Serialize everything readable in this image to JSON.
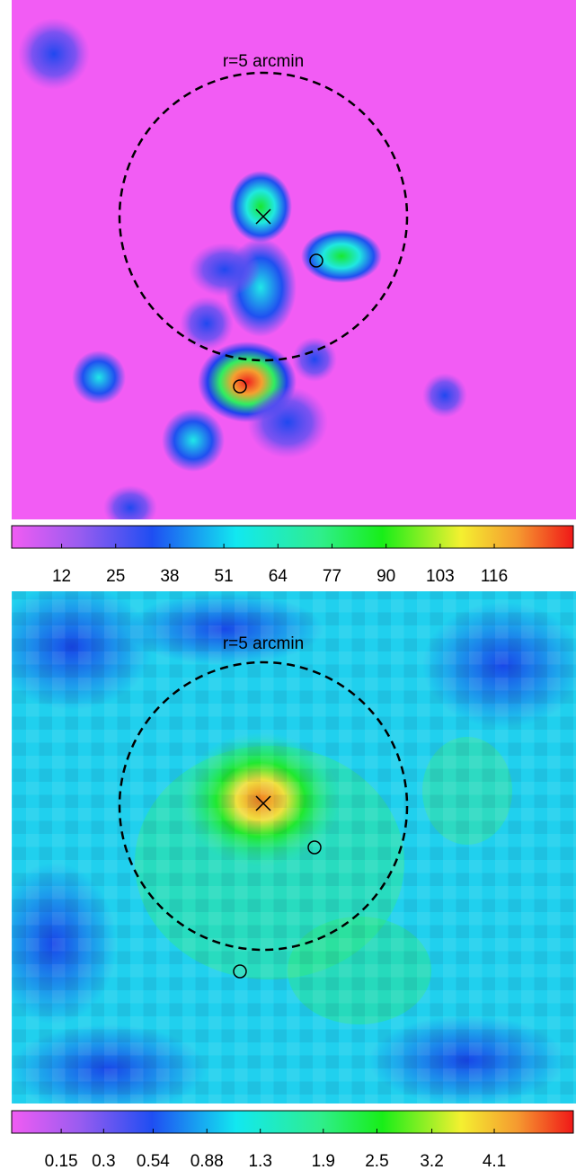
{
  "panels": [
    {
      "label": "r=5 arcmin",
      "colorbar": {
        "scale": "linear",
        "clim": [
          0,
          135
        ],
        "ticks": [
          12,
          25,
          38,
          51,
          64,
          77,
          90,
          103,
          116
        ]
      }
    },
    {
      "label": "r=5 arcmin",
      "colorbar": {
        "scale": "sqrt",
        "clim": [
          0.04,
          5.4
        ],
        "ticks": [
          0.15,
          0.3,
          0.54,
          0.88,
          1.3,
          1.9,
          2.5,
          3.2,
          4.1
        ]
      }
    }
  ]
}
